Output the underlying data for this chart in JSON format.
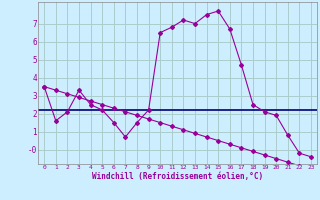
{
  "xlabel": "Windchill (Refroidissement éolien,°C)",
  "background_color": "#cceeff",
  "grid_color": "#aacccc",
  "line_color": "#990099",
  "mean_line_color": "#000077",
  "x": [
    0,
    1,
    2,
    3,
    4,
    5,
    6,
    7,
    8,
    9,
    10,
    11,
    12,
    13,
    14,
    15,
    16,
    17,
    18,
    19,
    20,
    21,
    22,
    23
  ],
  "y_main": [
    3.5,
    1.6,
    2.1,
    3.3,
    2.5,
    2.2,
    1.5,
    0.7,
    1.5,
    2.2,
    6.5,
    6.8,
    7.2,
    7.0,
    7.5,
    7.7,
    6.7,
    4.7,
    2.5,
    2.1,
    1.9,
    0.8,
    -0.2,
    -0.4
  ],
  "y_linear": [
    3.5,
    3.3,
    3.1,
    2.9,
    2.7,
    2.5,
    2.3,
    2.1,
    1.9,
    1.7,
    1.5,
    1.3,
    1.1,
    0.9,
    0.7,
    0.5,
    0.3,
    0.1,
    -0.1,
    -0.3,
    -0.5,
    -0.7,
    -0.9,
    -1.1
  ],
  "y_mean_val": 2.2,
  "ylim": [
    -0.8,
    8.2
  ],
  "xlim": [
    -0.5,
    23.5
  ],
  "yticks": [
    0,
    1,
    2,
    3,
    4,
    5,
    6,
    7
  ],
  "xticks": [
    0,
    1,
    2,
    3,
    4,
    5,
    6,
    7,
    8,
    9,
    10,
    11,
    12,
    13,
    14,
    15,
    16,
    17,
    18,
    19,
    20,
    21,
    22,
    23
  ],
  "ytick_labels": [
    "-0",
    "1",
    "2",
    "3",
    "4",
    "5",
    "6",
    "7"
  ]
}
